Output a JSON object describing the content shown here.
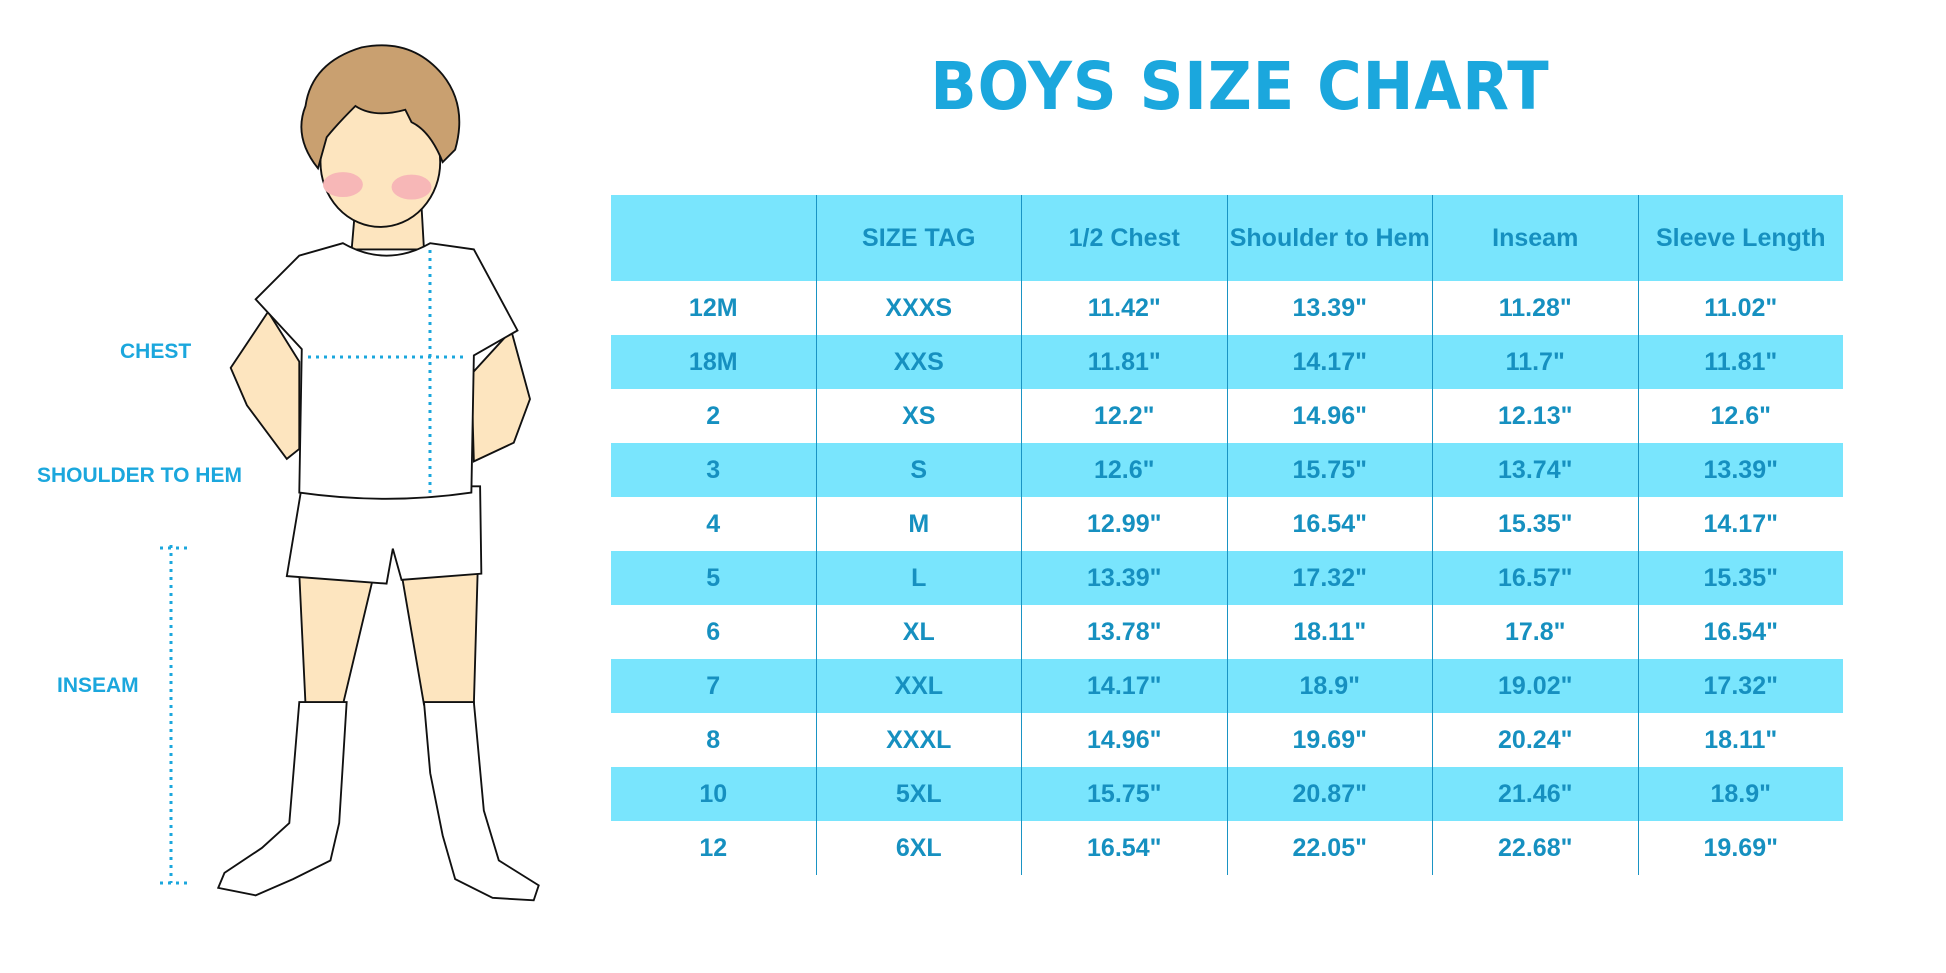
{
  "title": "BOYS SIZE CHART",
  "illustration": {
    "labels": {
      "chest": "CHEST",
      "shoulder_to_hem": "SHOULDER TO HEM",
      "inseam": "INSEAM"
    }
  },
  "colors": {
    "accent": "#1ba7dd",
    "row_highlight": "#79e5fd",
    "text": "#1690c0"
  },
  "table": {
    "headers": [
      "",
      "SIZE TAG",
      "1/2 Chest",
      "Shoulder to Hem",
      "Inseam",
      "Sleeve Length"
    ],
    "rows": [
      [
        "12M",
        "XXXS",
        "11.42\"",
        "13.39\"",
        "11.28\"",
        "11.02\""
      ],
      [
        "18M",
        "XXS",
        "11.81\"",
        "14.17\"",
        "11.7\"",
        "11.81\""
      ],
      [
        "2",
        "XS",
        "12.2\"",
        "14.96\"",
        "12.13\"",
        "12.6\""
      ],
      [
        "3",
        "S",
        "12.6\"",
        "15.75\"",
        "13.74\"",
        "13.39\""
      ],
      [
        "4",
        "M",
        "12.99\"",
        "16.54\"",
        "15.35\"",
        "14.17\""
      ],
      [
        "5",
        "L",
        "13.39\"",
        "17.32\"",
        "16.57\"",
        "15.35\""
      ],
      [
        "6",
        "XL",
        "13.78\"",
        "18.11\"",
        "17.8\"",
        "16.54\""
      ],
      [
        "7",
        "XXL",
        "14.17\"",
        "18.9\"",
        "19.02\"",
        "17.32\""
      ],
      [
        "8",
        "XXXL",
        "14.96\"",
        "19.69\"",
        "20.24\"",
        "18.11\""
      ],
      [
        "10",
        "5XL",
        "15.75\"",
        "20.87\"",
        "21.46\"",
        "18.9\""
      ],
      [
        "12",
        "6XL",
        "16.54\"",
        "22.05\"",
        "22.68\"",
        "19.69\""
      ]
    ]
  }
}
